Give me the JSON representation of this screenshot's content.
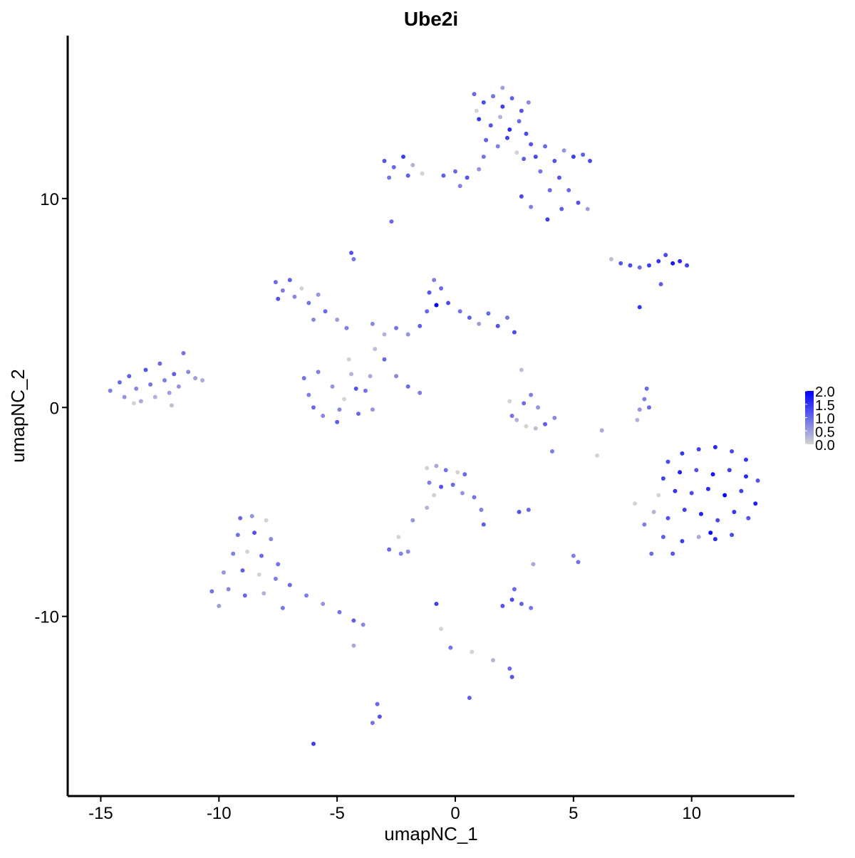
{
  "chart_data": {
    "type": "scatter",
    "title": "Ube2i",
    "x_label": "umapNC_1",
    "y_label": "umapNC_2",
    "xlim": [
      -16.4,
      14.35
    ],
    "ylim": [
      -18.6,
      17.8
    ],
    "xticks": [
      -15,
      -10,
      -5,
      0,
      5,
      10
    ],
    "yticks": [
      -10,
      0,
      10
    ],
    "color_low": "#d3d3d3",
    "color_high": "#0000ff",
    "clim": [
      0,
      2
    ],
    "cticks": [
      {
        "value": 0,
        "label": "0.0"
      },
      {
        "value": 0.5,
        "label": "0.5"
      },
      {
        "value": 1,
        "label": "1.0"
      },
      {
        "value": 1.5,
        "label": "1.5"
      },
      {
        "value": 2,
        "label": "2.0"
      }
    ],
    "x": [
      -14.6,
      -14.2,
      -14.0,
      -13.8,
      -13.5,
      -13.3,
      -13.1,
      -12.9,
      -12.7,
      -12.5,
      -12.3,
      -12.1,
      -11.9,
      -11.7,
      -11.5,
      -11.3,
      -11.0,
      -13.6,
      -12.0,
      -10.7,
      0.8,
      1.2,
      1.6,
      2.0,
      2.4,
      2.8,
      3.1,
      1.0,
      1.5,
      1.9,
      2.3,
      2.7,
      3.0,
      1.3,
      1.8,
      2.2,
      2.6,
      3.2,
      0.9,
      2.0,
      1.2,
      2.9,
      -3.0,
      -2.6,
      -2.2,
      -2.8,
      -1.8,
      -1.4,
      -0.5,
      0.0,
      0.5,
      1.0,
      -2.0,
      0.2,
      3.4,
      3.8,
      4.2,
      4.6,
      5.0,
      5.4,
      5.7,
      3.6,
      4.4,
      4.0,
      3.2,
      3.9,
      4.5,
      5.2,
      5.6,
      4.8,
      2.8,
      6.6,
      7.0,
      7.4,
      7.8,
      8.2,
      8.6,
      8.9,
      9.2,
      9.5,
      9.8,
      8.7,
      7.8,
      -2.7,
      -4.4,
      -4.3,
      -7.6,
      -7.3,
      -7.0,
      -6.8,
      -6.5,
      -6.2,
      -5.8,
      -5.5,
      -5.0,
      -4.6,
      -7.5,
      -6.0,
      -6.4,
      -6.2,
      -6.0,
      -5.6,
      -5.2,
      -5.0,
      -4.7,
      -4.4,
      -4.1,
      -3.8,
      -3.6,
      -4.5,
      -5.8,
      -4.9,
      -3.5,
      -4.2,
      -3.5,
      -3.0,
      -2.5,
      -2.0,
      -1.5,
      -1.2,
      -1.1,
      -0.9,
      -0.6,
      -0.3,
      0.2,
      0.6,
      1.0,
      1.4,
      1.8,
      2.2,
      2.5,
      -0.8,
      -2.5,
      -2.0,
      -1.5,
      -3.4,
      -3.0,
      2.3,
      2.9,
      3.2,
      3.5,
      2.6,
      3.0,
      3.4,
      3.8,
      4.2,
      2.4,
      2.8,
      8.1,
      8.0,
      7.8,
      7.7,
      8.2,
      9.0,
      9.6,
      10.3,
      11.0,
      11.7,
      12.3,
      8.8,
      9.5,
      10.2,
      10.9,
      11.6,
      12.3,
      12.8,
      8.6,
      9.3,
      10.0,
      10.7,
      11.4,
      12.1,
      12.7,
      8.4,
      9.0,
      9.7,
      10.4,
      11.1,
      11.8,
      12.4,
      8.8,
      9.6,
      10.3,
      11.0,
      11.7,
      10.8,
      8.3,
      9.2,
      7.6,
      8.0,
      -9.1,
      -8.6,
      -8.0,
      -9.2,
      -8.5,
      -7.8,
      -9.4,
      -8.8,
      -8.2,
      -7.5,
      -9.8,
      -9.0,
      -8.3,
      -7.6,
      -7.0,
      -10.3,
      -9.6,
      -8.9,
      -8.1,
      -6.3,
      -5.6,
      -4.9,
      -4.3,
      -3.9,
      -10.0,
      -7.3,
      -4.3,
      -1.2,
      -0.8,
      -0.4,
      0.1,
      0.4,
      -1.1,
      -0.6,
      -0.1,
      0.3,
      0.8,
      -0.9,
      1.1,
      1.2,
      -1.2,
      -1.8,
      -2.4,
      -2.8,
      -2.3,
      -2.0,
      2.7,
      3.1,
      5.0,
      5.2,
      3.3,
      2.0,
      2.4,
      2.8,
      3.2,
      2.5,
      -0.8,
      -0.6,
      -0.2,
      0.7,
      1.6,
      2.3,
      2.4,
      0.6,
      -3.3,
      -3.2,
      -3.5,
      -6.0,
      4.1,
      6.0,
      6.2
    ],
    "y": [
      0.8,
      1.2,
      0.5,
      1.5,
      0.9,
      0.3,
      1.8,
      1.1,
      0.5,
      2.1,
      1.3,
      0.7,
      1.6,
      1.0,
      2.6,
      1.7,
      1.4,
      0.2,
      0.1,
      1.3,
      15.0,
      14.6,
      14.9,
      14.4,
      14.8,
      14.2,
      14.6,
      13.8,
      13.5,
      13.9,
      13.3,
      13.7,
      13.1,
      12.8,
      12.5,
      12.9,
      12.2,
      12.6,
      14.2,
      15.3,
      12.0,
      11.9,
      11.8,
      11.5,
      12.0,
      11.0,
      11.6,
      11.2,
      11.1,
      11.3,
      11.0,
      11.4,
      11.1,
      10.6,
      12.0,
      12.5,
      11.8,
      12.3,
      12.0,
      12.1,
      11.8,
      11.3,
      11.0,
      10.4,
      9.6,
      9.0,
      9.5,
      9.8,
      9.5,
      10.4,
      10.1,
      7.1,
      6.9,
      6.8,
      6.7,
      6.8,
      7.0,
      7.3,
      6.9,
      7.0,
      6.8,
      5.9,
      4.8,
      8.9,
      7.4,
      7.1,
      6.0,
      5.6,
      6.1,
      5.3,
      5.7,
      5.0,
      5.4,
      4.6,
      4.2,
      3.8,
      5.2,
      4.2,
      1.4,
      0.6,
      0.0,
      -0.4,
      1.0,
      -0.7,
      0.4,
      1.6,
      -0.3,
      0.8,
      1.5,
      2.3,
      1.7,
      -0.1,
      -0.1,
      0.9,
      4.0,
      3.5,
      3.8,
      3.5,
      3.9,
      4.6,
      5.5,
      6.1,
      5.7,
      5.0,
      4.6,
      4.3,
      4.0,
      4.5,
      3.9,
      4.3,
      3.6,
      4.9,
      1.5,
      1.0,
      0.7,
      2.8,
      2.3,
      0.3,
      0.2,
      0.6,
      0.0,
      -0.6,
      -0.9,
      -1.0,
      -0.8,
      -0.5,
      -0.4,
      1.8,
      0.9,
      0.4,
      -0.1,
      -0.6,
      0.0,
      -2.6,
      -2.2,
      -2.0,
      -1.9,
      -2.1,
      -2.5,
      -3.4,
      -3.1,
      -3.0,
      -3.2,
      -3.0,
      -3.3,
      -3.5,
      -4.2,
      -4.0,
      -4.1,
      -3.9,
      -4.2,
      -4.0,
      -4.6,
      -5.0,
      -5.3,
      -4.9,
      -5.1,
      -5.4,
      -5.0,
      -5.3,
      -6.2,
      -6.4,
      -6.2,
      -6.3,
      -6.1,
      -6.0,
      -7.0,
      -7.0,
      -4.6,
      -5.6,
      -5.3,
      -5.2,
      -5.4,
      -6.1,
      -6.0,
      -6.3,
      -7.0,
      -6.9,
      -7.1,
      -7.5,
      -7.9,
      -7.8,
      -8.0,
      -8.2,
      -8.5,
      -8.8,
      -8.7,
      -9.0,
      -8.9,
      -9.0,
      -9.4,
      -9.8,
      -10.2,
      -10.4,
      -9.5,
      -9.6,
      -11.4,
      -2.9,
      -2.8,
      -3.0,
      -3.1,
      -3.2,
      -3.6,
      -3.8,
      -3.7,
      -4.1,
      -4.3,
      -4.2,
      -4.9,
      -5.6,
      -4.8,
      -5.4,
      -6.2,
      -6.8,
      -7.0,
      -6.9,
      -5.0,
      -4.9,
      -7.1,
      -7.4,
      -7.5,
      -9.5,
      -9.2,
      -9.4,
      -9.6,
      -8.7,
      -9.4,
      -10.6,
      -11.5,
      -11.7,
      -12.1,
      -12.5,
      -12.9,
      -13.9,
      -14.2,
      -14.8,
      -15.1,
      -16.1,
      -2.1,
      -2.3,
      -1.1
    ],
    "values": [
      0.8,
      1.0,
      0.6,
      1.1,
      0.7,
      0.4,
      1.2,
      0.9,
      0.3,
      1.0,
      0.8,
      0.5,
      1.1,
      0.6,
      0.9,
      0.7,
      0.5,
      0.0,
      0.2,
      0.4,
      1.0,
      1.3,
      0.9,
      1.4,
      1.1,
      1.2,
      0.7,
      1.5,
      1.2,
      0.3,
      1.6,
      1.0,
      1.3,
      1.1,
      0.8,
      1.4,
      0.0,
      1.2,
      0.0,
      0.5,
      0.9,
      1.1,
      1.2,
      1.0,
      1.4,
      0.9,
      0.3,
      0.0,
      1.1,
      1.0,
      1.2,
      0.6,
      1.1,
      0.8,
      1.3,
      1.0,
      1.2,
      0.6,
      1.4,
      1.1,
      1.3,
      0.9,
      1.2,
      1.0,
      0.8,
      1.4,
      1.1,
      1.2,
      0.5,
      1.0,
      1.3,
      0.2,
      1.2,
      1.3,
      1.0,
      1.4,
      1.5,
      1.3,
      1.8,
      1.6,
      1.4,
      1.1,
      1.5,
      1.0,
      1.2,
      0.9,
      1.0,
      0.8,
      1.1,
      0.7,
      0.0,
      0.9,
      0.6,
      1.0,
      0.5,
      0.8,
      1.2,
      0.7,
      0.9,
      0.8,
      1.0,
      0.7,
      0.6,
      1.1,
      0.0,
      0.3,
      1.0,
      0.9,
      0.4,
      0.0,
      0.8,
      0.7,
      0.6,
      1.2,
      0.7,
      0.3,
      0.9,
      0.6,
      1.1,
      1.0,
      1.2,
      0.8,
      1.0,
      1.3,
      0.9,
      1.1,
      0.5,
      1.0,
      1.2,
      0.9,
      1.3,
      2.0,
      0.7,
      1.0,
      0.8,
      0.2,
      1.0,
      0.0,
      1.0,
      0.8,
      0.6,
      0.3,
      0.0,
      0.2,
      1.1,
      0.7,
      0.9,
      0.2,
      1.0,
      0.8,
      0.6,
      0.3,
      1.0,
      1.3,
      1.5,
      1.4,
      1.6,
      1.3,
      1.5,
      1.4,
      1.7,
      1.2,
      1.8,
      1.4,
      1.6,
      1.2,
      0.0,
      1.5,
      1.3,
      1.6,
      2.0,
      1.4,
      1.7,
      0.3,
      1.2,
      1.4,
      1.7,
      1.3,
      1.5,
      1.2,
      1.1,
      1.4,
      0.4,
      1.6,
      1.3,
      1.9,
      1.0,
      1.2,
      0.0,
      0.8,
      1.0,
      0.6,
      0.0,
      0.9,
      1.2,
      0.7,
      0.8,
      0.0,
      1.0,
      0.9,
      0.6,
      1.1,
      0.0,
      0.8,
      1.0,
      0.9,
      0.7,
      1.0,
      0.3,
      0.8,
      0.6,
      0.9,
      1.1,
      0.7,
      0.5,
      0.9,
      0.4,
      0.0,
      0.4,
      0.9,
      0.0,
      1.0,
      0.8,
      1.2,
      1.0,
      0.6,
      0.9,
      0.0,
      0.8,
      1.1,
      0.3,
      0.6,
      0.0,
      1.0,
      0.8,
      0.7,
      1.2,
      1.0,
      0.8,
      0.9,
      0.4,
      1.2,
      1.3,
      1.1,
      0.9,
      1.0,
      1.4,
      0.0,
      0.9,
      0.0,
      0.3,
      1.0,
      1.2,
      1.1,
      1.0,
      1.2,
      0.9,
      1.4,
      0.8,
      0.0,
      0.4
    ]
  }
}
